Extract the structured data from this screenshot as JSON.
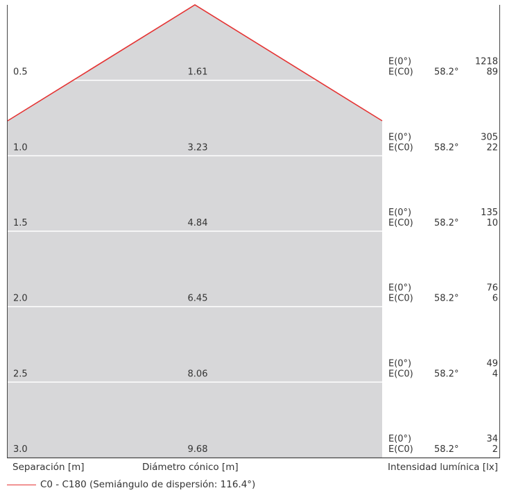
{
  "chart_data": {
    "type": "cone-diagram",
    "title": "",
    "half_angle_deg": 58.2,
    "rows": [
      {
        "separation": "0.5",
        "diameter": "1.61",
        "e0_label": "E(0°)",
        "e0": "1218",
        "ec0_label": "E(C0)",
        "ec0_angle": "58.2°",
        "ec0": "89"
      },
      {
        "separation": "1.0",
        "diameter": "3.23",
        "e0_label": "E(0°)",
        "e0": "305",
        "ec0_label": "E(C0)",
        "ec0_angle": "58.2°",
        "ec0": "22"
      },
      {
        "separation": "1.5",
        "diameter": "4.84",
        "e0_label": "E(0°)",
        "e0": "135",
        "ec0_label": "E(C0)",
        "ec0_angle": "58.2°",
        "ec0": "10"
      },
      {
        "separation": "2.0",
        "diameter": "6.45",
        "e0_label": "E(0°)",
        "e0": "76",
        "ec0_label": "E(C0)",
        "ec0_angle": "58.2°",
        "ec0": "6"
      },
      {
        "separation": "2.5",
        "diameter": "8.06",
        "e0_label": "E(0°)",
        "e0": "49",
        "ec0_label": "E(C0)",
        "ec0_angle": "58.2°",
        "ec0": "4"
      },
      {
        "separation": "3.0",
        "diameter": "9.68",
        "e0_label": "E(0°)",
        "e0": "34",
        "ec0_label": "E(C0)",
        "ec0_angle": "58.2°",
        "ec0": "2"
      }
    ],
    "footer": {
      "separation_label": "Separación [m]",
      "diameter_label": "Diámetro cónico [m]",
      "intensity_label": "Intensidad lumínica [lx]"
    },
    "legend": {
      "color": "#e53333",
      "text": "C0 - C180 (Semiángulo de dispersión: 116.4°)"
    },
    "colors": {
      "fill": "#d7d7d9",
      "line": "#e53333",
      "frame": "#444444",
      "divider": "#ffffff"
    }
  }
}
